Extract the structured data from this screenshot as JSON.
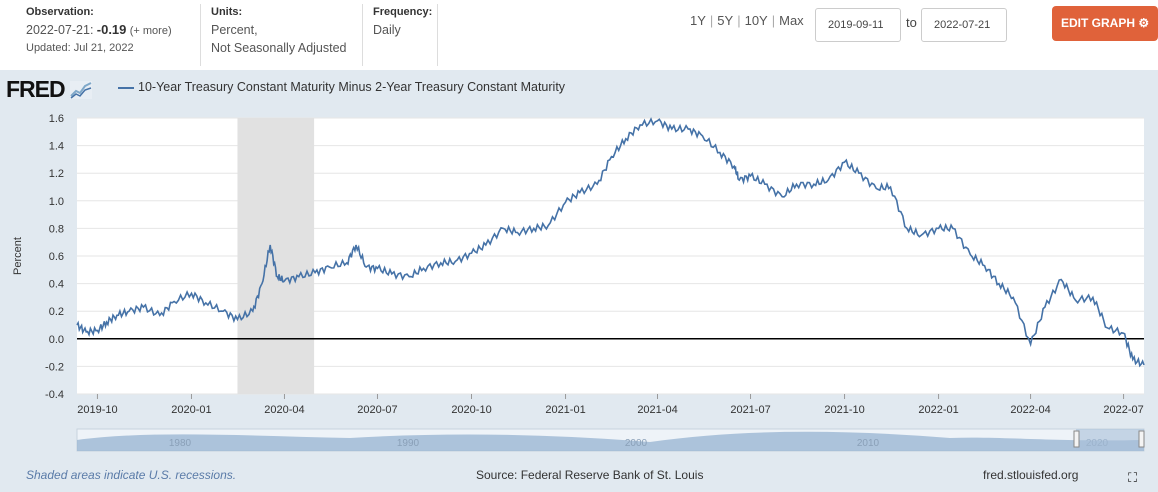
{
  "header": {
    "observation_label": "Observation:",
    "observation_date": "2022-07-21:",
    "observation_value": "-0.19",
    "observation_more": "(+ more)",
    "updated": "Updated: Jul 21, 2022",
    "units_label": "Units:",
    "units_line1": "Percent,",
    "units_line2": "Not Seasonally Adjusted",
    "frequency_label": "Frequency:",
    "frequency_value": "Daily",
    "ranges": [
      "1Y",
      "5Y",
      "10Y",
      "Max"
    ],
    "date_from": "2019-09-11",
    "to_label": "to",
    "date_to": "2022-07-21",
    "edit_label": "EDIT GRAPH"
  },
  "logo": "FRED",
  "footer": {
    "recession_note": "Shaded areas indicate U.S. recessions.",
    "source": "Source: Federal Reserve Bank of St. Louis",
    "site": "fred.stlouisfed.org"
  },
  "colors": {
    "accent": "#e0623a",
    "series": "#4572a7",
    "panel": "#e1e9f0",
    "recession": "#e1e1e1"
  },
  "chart_data": {
    "type": "line",
    "title": "",
    "legend": [
      "10-Year Treasury Constant Maturity Minus 2-Year Treasury Constant Maturity"
    ],
    "xlabel": "",
    "ylabel": "Percent",
    "ylim": [
      -0.4,
      1.6
    ],
    "yticks": [
      "1.6",
      "1.4",
      "1.2",
      "1.0",
      "0.8",
      "0.6",
      "0.4",
      "0.2",
      "0.0",
      "-0.2",
      "-0.4"
    ],
    "xticks": [
      "2019-10",
      "2020-01",
      "2020-04",
      "2020-07",
      "2020-10",
      "2021-01",
      "2021-04",
      "2021-07",
      "2021-10",
      "2022-01",
      "2022-04",
      "2022-07"
    ],
    "xrange": [
      "2019-09-11",
      "2022-07-21"
    ],
    "grid": true,
    "recession": [
      "2020-02-15",
      "2020-04-30"
    ],
    "navigator_labels": [
      "1980",
      "1990",
      "2000",
      "2010",
      "2020"
    ],
    "series": [
      {
        "name": "10-Year Treasury Constant Maturity Minus 2-Year Treasury Constant Maturity",
        "x": [
          "2019-09-11",
          "2019-09-20",
          "2019-10-01",
          "2019-10-10",
          "2019-10-20",
          "2019-11-01",
          "2019-11-15",
          "2019-12-01",
          "2019-12-15",
          "2020-01-01",
          "2020-01-15",
          "2020-02-01",
          "2020-02-15",
          "2020-03-01",
          "2020-03-10",
          "2020-03-18",
          "2020-03-25",
          "2020-04-01",
          "2020-04-15",
          "2020-05-01",
          "2020-05-15",
          "2020-06-01",
          "2020-06-10",
          "2020-06-20",
          "2020-07-01",
          "2020-07-15",
          "2020-08-01",
          "2020-08-15",
          "2020-09-01",
          "2020-09-15",
          "2020-10-01",
          "2020-10-15",
          "2020-11-01",
          "2020-11-15",
          "2020-12-01",
          "2020-12-15",
          "2021-01-01",
          "2021-01-15",
          "2021-02-01",
          "2021-02-15",
          "2021-03-01",
          "2021-03-15",
          "2021-04-01",
          "2021-04-15",
          "2021-05-01",
          "2021-05-15",
          "2021-06-01",
          "2021-06-15",
          "2021-06-20",
          "2021-07-01",
          "2021-07-15",
          "2021-08-01",
          "2021-08-15",
          "2021-09-01",
          "2021-09-15",
          "2021-10-01",
          "2021-10-15",
          "2021-11-01",
          "2021-11-15",
          "2021-12-01",
          "2021-12-15",
          "2022-01-01",
          "2022-01-15",
          "2022-02-01",
          "2022-02-15",
          "2022-03-01",
          "2022-03-15",
          "2022-04-01",
          "2022-04-15",
          "2022-05-01",
          "2022-05-15",
          "2022-06-01",
          "2022-06-15",
          "2022-07-01",
          "2022-07-10",
          "2022-07-21"
        ],
        "values": [
          0.1,
          0.05,
          0.06,
          0.12,
          0.17,
          0.2,
          0.23,
          0.17,
          0.27,
          0.33,
          0.26,
          0.2,
          0.14,
          0.2,
          0.4,
          0.68,
          0.45,
          0.42,
          0.45,
          0.48,
          0.52,
          0.55,
          0.68,
          0.52,
          0.51,
          0.47,
          0.45,
          0.51,
          0.55,
          0.56,
          0.62,
          0.68,
          0.8,
          0.77,
          0.8,
          0.82,
          0.99,
          1.06,
          1.12,
          1.32,
          1.45,
          1.55,
          1.58,
          1.52,
          1.52,
          1.47,
          1.35,
          1.25,
          1.15,
          1.18,
          1.12,
          1.03,
          1.12,
          1.12,
          1.15,
          1.28,
          1.2,
          1.09,
          1.1,
          0.8,
          0.75,
          0.8,
          0.8,
          0.61,
          0.53,
          0.4,
          0.3,
          -0.04,
          0.23,
          0.43,
          0.28,
          0.3,
          0.08,
          0.04,
          -0.15,
          -0.19
        ]
      }
    ]
  }
}
